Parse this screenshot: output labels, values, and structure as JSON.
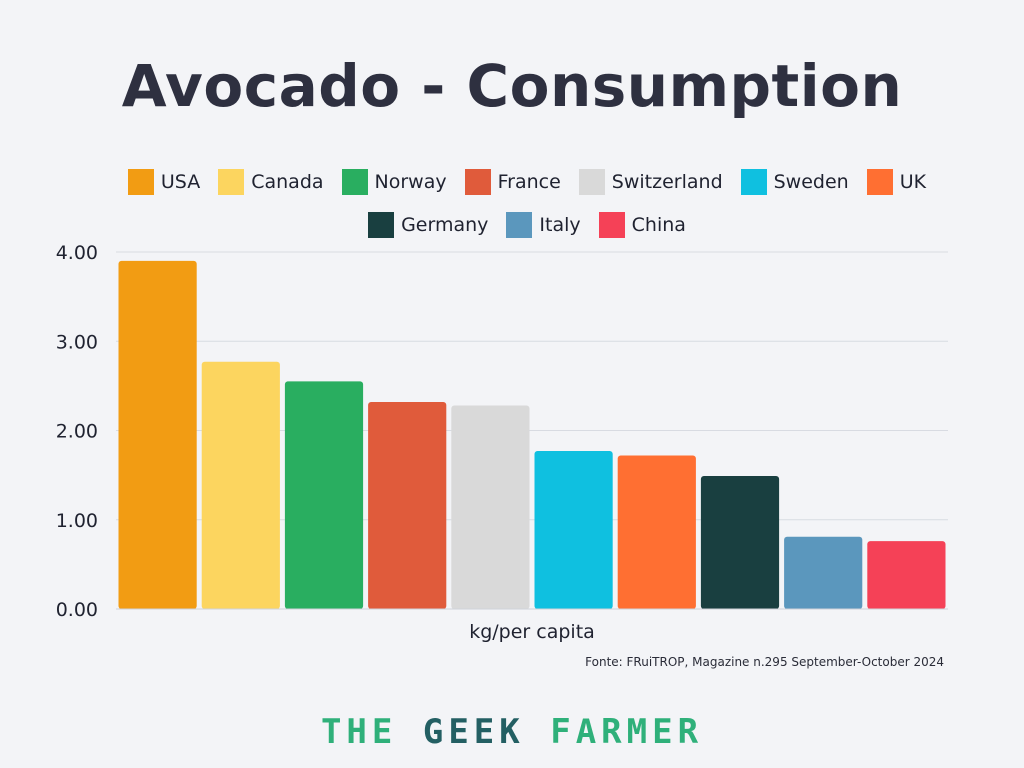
{
  "chart_data": {
    "type": "bar",
    "title": "Avocado - Consumption",
    "xlabel": "kg/per capita",
    "ylabel": "",
    "ylim": [
      0,
      4
    ],
    "yticks": [
      "0.00",
      "1.00",
      "2.00",
      "3.00",
      "4.00"
    ],
    "grid": true,
    "legend_position": "top",
    "categories": [
      "USA",
      "Canada",
      "Norway",
      "France",
      "Switzerland",
      "Sweden",
      "UK",
      "Germany",
      "Italy",
      "China"
    ],
    "values": [
      3.9,
      2.77,
      2.55,
      2.32,
      2.28,
      1.77,
      1.72,
      1.49,
      0.81,
      0.76
    ],
    "colors": [
      "#f29c13",
      "#fcd55f",
      "#29ae60",
      "#e05b3b",
      "#d9d9d9",
      "#0fc0e0",
      "#ff6f32",
      "#193f40",
      "#5b97bd",
      "#f54157"
    ]
  },
  "source_note": "Fonte: FRuiTROP, Magazine n.295 September-October 2024",
  "brand": {
    "word1": "THE",
    "word2": "GEEK",
    "word3": "FARMER"
  }
}
